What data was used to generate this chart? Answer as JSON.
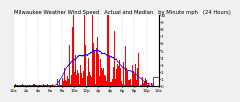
{
  "title": "Milwaukee Weather Wind Speed   Actual and Median   by Minute mph   (24 Hours)",
  "title_fontsize": 3.8,
  "background_color": "#f0f0f0",
  "plot_bg_color": "#ffffff",
  "bar_color": "#ff0000",
  "line_color": "#0000ff",
  "n_minutes": 1440,
  "ylim": [
    0,
    10
  ],
  "xlim": [
    0,
    1440
  ],
  "grid_color": "#aaaaaa",
  "tick_fontsize": 3.0,
  "yticks": [
    0,
    1,
    2,
    3,
    4,
    5,
    6,
    7,
    8,
    9,
    10
  ]
}
